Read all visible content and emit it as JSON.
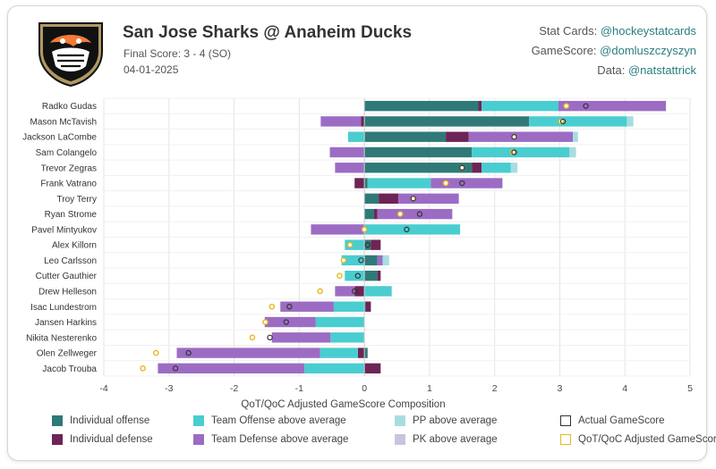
{
  "header": {
    "title": "San Jose Sharks @ Anaheim Ducks",
    "subtitle": "Final Score: 3 - 4 (SO)",
    "date": "04-01-2025"
  },
  "credits": {
    "stat_cards_label": "Stat Cards: ",
    "stat_cards_handle": "@hockeystatcards",
    "gamescore_label": "GameScore: ",
    "gamescore_handle": "@domluszczyszyn",
    "data_label": "Data: ",
    "data_handle": "@natstattrick"
  },
  "logo": {
    "icon": "anaheim-ducks-logo",
    "colors": [
      "#111111",
      "#f47a38",
      "#b09862"
    ]
  },
  "colors": {
    "individual_offense": "#2e7a78",
    "individual_defense": "#6d2456",
    "team_offense": "#49cdd0",
    "team_defense": "#9c6cc4",
    "pp": "#a8dde0",
    "pk": "#c9c3df",
    "actual_marker": "#333333",
    "qot_marker": "#e6b820"
  },
  "chart_data": {
    "type": "bar",
    "orientation": "horizontal",
    "stacked": true,
    "xlabel": "QoT/QoC Adjusted GameScore Composition",
    "xlim": [
      -4,
      5
    ],
    "xticks": [
      -4,
      -3,
      -2,
      -1,
      0,
      1,
      2,
      3,
      4,
      5
    ],
    "grid": true,
    "players": [
      "Radko Gudas",
      "Mason McTavish",
      "Jackson LaCombe",
      "Sam Colangelo",
      "Trevor Zegras",
      "Frank Vatrano",
      "Troy Terry",
      "Ryan Strome",
      "Pavel Mintyukov",
      "Alex Killorn",
      "Leo Carlsson",
      "Cutter Gauthier",
      "Drew Helleson",
      "Isac Lundestrom",
      "Jansen Harkins",
      "Nikita Nesterenko",
      "Olen Zellweger",
      "Jacob Trouba"
    ],
    "series": [
      {
        "name": "Individual offense",
        "key": "individual_offense",
        "values": [
          1.75,
          2.53,
          1.25,
          1.65,
          1.65,
          0.05,
          0.22,
          0.15,
          0.0,
          0.1,
          0.2,
          0.2,
          0.0,
          0.02,
          0.0,
          0.0,
          0.05,
          0.0
        ]
      },
      {
        "name": "Individual defense",
        "key": "individual_defense",
        "values": [
          0.05,
          -0.05,
          0.35,
          0.0,
          0.15,
          -0.15,
          0.3,
          0.05,
          0.0,
          0.15,
          0.0,
          0.05,
          -0.15,
          0.08,
          0.0,
          0.0,
          -0.1,
          0.25
        ]
      },
      {
        "name": "Team Offense above average",
        "key": "team_offense",
        "values": [
          1.18,
          1.5,
          -0.25,
          1.5,
          0.45,
          0.97,
          0.0,
          0.0,
          1.47,
          -0.3,
          -0.35,
          -0.3,
          0.42,
          -0.47,
          -0.75,
          -0.52,
          -0.58,
          -0.92
        ]
      },
      {
        "name": "Team Defense above average",
        "key": "team_defense",
        "values": [
          1.65,
          -0.62,
          1.6,
          -0.53,
          -0.45,
          1.1,
          0.93,
          1.15,
          -0.82,
          0.0,
          0.08,
          0.0,
          -0.3,
          -0.82,
          -0.78,
          -0.9,
          -2.2,
          -2.25
        ]
      },
      {
        "name": "PP above average",
        "key": "pp",
        "values": [
          0.0,
          0.1,
          0.08,
          0.1,
          0.1,
          0.0,
          0.0,
          0.0,
          0.0,
          0.0,
          0.1,
          0.0,
          0.0,
          0.0,
          0.0,
          0.0,
          0.0,
          0.0
        ]
      },
      {
        "name": "PK above average",
        "key": "pk",
        "values": [
          0.0,
          0.0,
          0.0,
          0.0,
          0.0,
          0.0,
          0.0,
          0.0,
          0.0,
          0.0,
          0.0,
          0.0,
          0.0,
          0.0,
          0.0,
          0.0,
          0.0,
          0.0
        ]
      }
    ],
    "actual_gamescore": [
      3.4,
      3.05,
      2.3,
      2.3,
      1.5,
      1.5,
      0.75,
      0.85,
      0.65,
      0.05,
      -0.05,
      -0.1,
      -0.15,
      -1.15,
      -1.2,
      -1.45,
      -2.7,
      -2.9
    ],
    "qot_adjusted_gamescore": [
      3.1,
      3.02,
      2.3,
      2.28,
      1.5,
      1.25,
      0.75,
      0.55,
      0.0,
      -0.22,
      -0.32,
      -0.38,
      -0.68,
      -1.42,
      -1.52,
      -1.72,
      -3.2,
      -3.4
    ],
    "legend": [
      {
        "label": "Individual offense",
        "kind": "fill",
        "color_key": "individual_offense"
      },
      {
        "label": "Team Offense above average",
        "kind": "fill",
        "color_key": "team_offense"
      },
      {
        "label": "PP above average",
        "kind": "fill",
        "color_key": "pp"
      },
      {
        "label": "Actual GameScore",
        "kind": "outline",
        "color_key": "actual_marker"
      },
      {
        "label": "Individual defense",
        "kind": "fill",
        "color_key": "individual_defense"
      },
      {
        "label": "Team Defense above average",
        "kind": "fill",
        "color_key": "team_defense"
      },
      {
        "label": "PK above average",
        "kind": "fill",
        "color_key": "pk"
      },
      {
        "label": "QoT/QoC Adjusted GameScore",
        "kind": "outline",
        "color_key": "qot_marker"
      }
    ]
  }
}
